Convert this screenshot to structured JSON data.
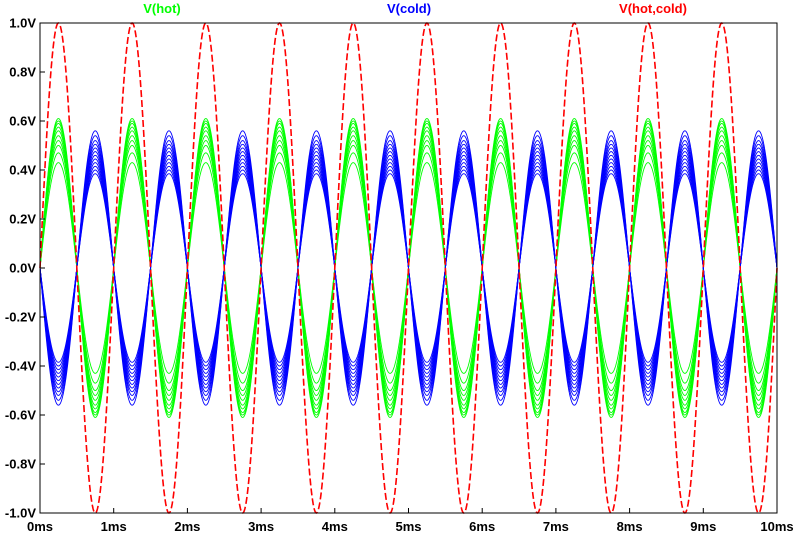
{
  "chart_data": {
    "type": "line",
    "title": "",
    "xlabel": "",
    "ylabel": "",
    "xlim": [
      0,
      10
    ],
    "ylim": [
      -1.0,
      1.0
    ],
    "x_unit": "ms",
    "y_unit": "V",
    "grid": false,
    "legend_position": "top",
    "x_ticks": [
      0,
      1,
      2,
      3,
      4,
      5,
      6,
      7,
      8,
      9,
      10
    ],
    "x_tick_labels": [
      "0ms",
      "1ms",
      "2ms",
      "3ms",
      "4ms",
      "5ms",
      "6ms",
      "7ms",
      "8ms",
      "9ms",
      "10ms"
    ],
    "y_ticks": [
      1.0,
      0.8,
      0.6,
      0.4,
      0.2,
      0.0,
      -0.2,
      -0.4,
      -0.6,
      -0.8,
      -1.0
    ],
    "y_tick_labels": [
      "1.0V",
      "0.8V",
      "0.6V",
      "0.4V",
      "0.2V",
      "0.0V",
      "-0.2V",
      "-0.4V",
      "-0.6V",
      "-0.8V",
      "-1.0V"
    ],
    "signal_frequency_hz": 1000,
    "series": [
      {
        "name": "V(hot)",
        "color": "#00ff00",
        "waveform": "sine",
        "phase": "positive",
        "peak_amplitudes_v": [
          0.43,
          0.47,
          0.5,
          0.52,
          0.54,
          0.56,
          0.575,
          0.59,
          0.6,
          0.61
        ]
      },
      {
        "name": "V(cold)",
        "color": "#0000ff",
        "waveform": "sine",
        "phase": "inverted",
        "peak_amplitudes_v": [
          0.385,
          0.4,
          0.415,
          0.43,
          0.445,
          0.46,
          0.475,
          0.49,
          0.505,
          0.52,
          0.54,
          0.56
        ]
      },
      {
        "name": "V(hot,cold)",
        "color": "#ff0000",
        "waveform": "sine",
        "phase": "positive",
        "peak_amplitudes_v": [
          1.0
        ],
        "dashed": true
      }
    ]
  }
}
